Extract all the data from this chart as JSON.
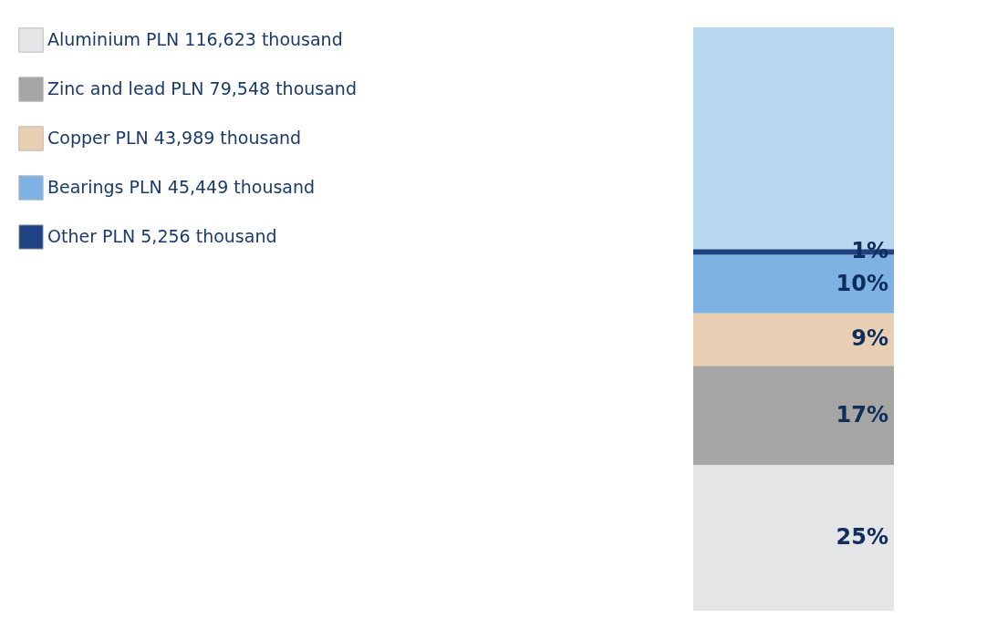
{
  "chart_data": {
    "type": "bar",
    "stacked": true,
    "categories": [
      null
    ],
    "series": [
      {
        "name": "Aluminium   PLN 116,623 thousand",
        "color": "#e4e5e7",
        "values": [
          25
        ],
        "value_labels": [
          "25%"
        ]
      },
      {
        "name": "Zinc and lead PLN 79,548 thousand",
        "color": "#a5a5a4",
        "values": [
          17
        ],
        "value_labels": [
          "17%"
        ]
      },
      {
        "name": "Copper PLN 43,989 thousand",
        "color": "#e8cfb3",
        "values": [
          9
        ],
        "value_labels": [
          "9%"
        ]
      },
      {
        "name": "Bearings PLN 45,449 thousand",
        "color": "#7eb2e2",
        "values": [
          10
        ],
        "value_labels": [
          "10%"
        ]
      },
      {
        "name": "Other PLN 5,256 thousand",
        "color": "#1f4282",
        "values": [
          1
        ],
        "value_labels": [
          "1%"
        ]
      },
      {
        "color": "#b9d7ee",
        "values": [
          38
        ]
      }
    ],
    "legend": "top left",
    "tick_labels": false
  }
}
